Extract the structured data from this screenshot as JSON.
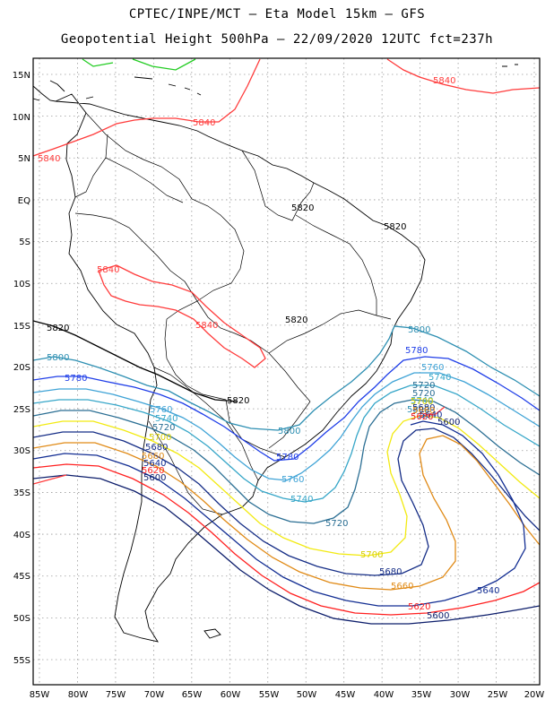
{
  "header": {
    "title_line1": "CPTEC/INPE/MCT –  Eta Model 15km – GFS",
    "title_line2": "Geopotential Height 500hPa – 22/09/2020 12UTC fct=237h"
  },
  "axes": {
    "lat_labels": [
      "15N",
      "10N",
      "5N",
      "EQ",
      "5S",
      "10S",
      "15S",
      "20S",
      "25S",
      "30S",
      "35S",
      "40S",
      "45S",
      "50S",
      "55S"
    ],
    "lon_labels": [
      "85W",
      "80W",
      "75W",
      "70W",
      "65W",
      "60W",
      "55W",
      "50W",
      "45W",
      "40W",
      "35W",
      "30W",
      "25W",
      "20W"
    ]
  },
  "contours": [
    {
      "value": "5840",
      "color": "#ff3b3b"
    },
    {
      "value": "5820",
      "color": "#000000"
    },
    {
      "value": "5800",
      "color": "#2d8fb2"
    },
    {
      "value": "5780",
      "color": "#1f3ee8"
    },
    {
      "value": "5760",
      "color": "#3fa3d6"
    },
    {
      "value": "5740",
      "color": "#36a6c8"
    },
    {
      "value": "5720",
      "color": "#2a6e93"
    },
    {
      "value": "5700",
      "color": "#f2ea12"
    },
    {
      "value": "5680",
      "color": "#152d86"
    },
    {
      "value": "5660",
      "color": "#e08a16"
    },
    {
      "value": "5640",
      "color": "#132e93"
    },
    {
      "value": "5620",
      "color": "#ff2020"
    },
    {
      "value": "5600",
      "color": "#0c1d6b"
    }
  ],
  "colors": {
    "frame": "#000000",
    "grid": "#9a9a9a",
    "green_contour": "#22cc22"
  },
  "contour_labels": [
    "5840",
    "5840",
    "5840",
    "5840",
    "5840",
    "5820",
    "5820",
    "5820",
    "5820",
    "5820",
    "5800",
    "5800",
    "5800",
    "5800",
    "5780",
    "5780",
    "5780",
    "5760",
    "5760",
    "5760",
    "5760",
    "5740",
    "5740",
    "5740",
    "5740",
    "5720",
    "5720",
    "5720",
    "5720",
    "5700",
    "5700",
    "5700",
    "5680",
    "5680",
    "5680",
    "5660",
    "5660",
    "5660",
    "5640",
    "5640",
    "5640",
    "5620",
    "5620",
    "5620",
    "5600",
    "5600",
    "5600"
  ]
}
